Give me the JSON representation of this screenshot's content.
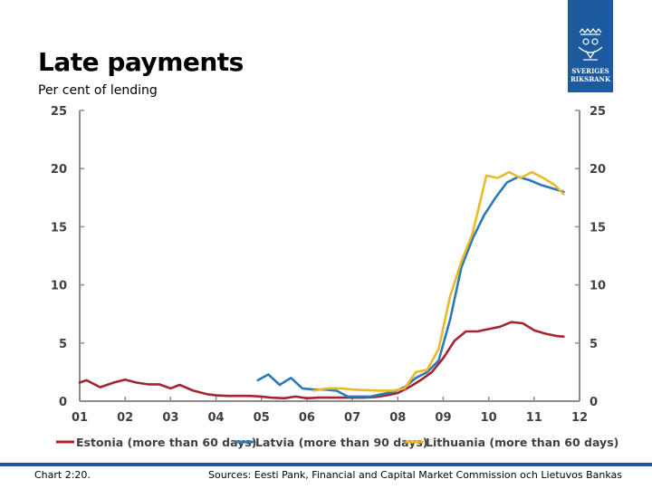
{
  "header": {
    "title": "Late payments",
    "subtitle": "Per cent of lending"
  },
  "logo": {
    "line1": "SVERIGES",
    "line2": "RIKSBANK"
  },
  "footer": {
    "chart_number": "Chart 2:20.",
    "sources": "Sources: Eesti Pank, Financial and Capital Market Commission och Lietuvos Bankas"
  },
  "colors": {
    "estonia": "#a32530",
    "latvia": "#2a7ab8",
    "lithuania": "#e8b92a",
    "brand": "#1c5aa0",
    "axis": "#8c8c8c"
  },
  "chart_data": {
    "type": "line",
    "title": "Late payments",
    "subtitle": "Per cent of lending",
    "xlabel": "",
    "ylabel": "",
    "xlim": [
      2001,
      2012
    ],
    "ylim": [
      0,
      25
    ],
    "yticks": [
      0,
      5,
      10,
      15,
      20,
      25
    ],
    "xtick_values": [
      2001,
      2002,
      2003,
      2004,
      2005,
      2006,
      2007,
      2008,
      2009,
      2010,
      2011,
      2012
    ],
    "xtick_labels": [
      "01",
      "02",
      "03",
      "04",
      "05",
      "06",
      "07",
      "08",
      "09",
      "10",
      "11",
      "12"
    ],
    "grid": false,
    "dual_y_axis": true,
    "legend_position": "bottom",
    "series": [
      {
        "name": "Estonia (more than 60 days)",
        "color": "#a32530",
        "points": [
          [
            2001.0,
            1.6
          ],
          [
            2001.15,
            1.8
          ],
          [
            2001.45,
            1.2
          ],
          [
            2001.75,
            1.6
          ],
          [
            2002.0,
            1.85
          ],
          [
            2002.25,
            1.6
          ],
          [
            2002.5,
            1.45
          ],
          [
            2002.75,
            1.45
          ],
          [
            2003.0,
            1.1
          ],
          [
            2003.2,
            1.4
          ],
          [
            2003.5,
            0.9
          ],
          [
            2003.8,
            0.6
          ],
          [
            2004.0,
            0.5
          ],
          [
            2004.25,
            0.45
          ],
          [
            2004.5,
            0.45
          ],
          [
            2004.75,
            0.45
          ],
          [
            2005.0,
            0.4
          ],
          [
            2005.2,
            0.3
          ],
          [
            2005.5,
            0.25
          ],
          [
            2005.75,
            0.4
          ],
          [
            2006.0,
            0.25
          ],
          [
            2006.25,
            0.3
          ],
          [
            2006.5,
            0.3
          ],
          [
            2006.75,
            0.3
          ],
          [
            2007.0,
            0.3
          ],
          [
            2007.25,
            0.3
          ],
          [
            2007.5,
            0.35
          ],
          [
            2007.75,
            0.5
          ],
          [
            2008.0,
            0.7
          ],
          [
            2008.25,
            1.2
          ],
          [
            2008.5,
            1.8
          ],
          [
            2008.75,
            2.5
          ],
          [
            2009.0,
            3.7
          ],
          [
            2009.25,
            5.2
          ],
          [
            2009.5,
            6.0
          ],
          [
            2009.75,
            6.0
          ],
          [
            2010.0,
            6.2
          ],
          [
            2010.25,
            6.4
          ],
          [
            2010.5,
            6.8
          ],
          [
            2010.75,
            6.7
          ],
          [
            2011.0,
            6.1
          ],
          [
            2011.25,
            5.8
          ],
          [
            2011.5,
            5.6
          ],
          [
            2011.65,
            5.55
          ]
        ]
      },
      {
        "name": "Latvia (more than 90 days)",
        "color": "#2a7ab8",
        "points": [
          [
            2004.92,
            1.8
          ],
          [
            2005.15,
            2.3
          ],
          [
            2005.4,
            1.4
          ],
          [
            2005.65,
            2.0
          ],
          [
            2005.9,
            1.1
          ],
          [
            2006.15,
            1.0
          ],
          [
            2006.4,
            1.0
          ],
          [
            2006.65,
            0.9
          ],
          [
            2006.9,
            0.4
          ],
          [
            2007.15,
            0.4
          ],
          [
            2007.4,
            0.4
          ],
          [
            2007.65,
            0.6
          ],
          [
            2007.9,
            0.8
          ],
          [
            2008.15,
            1.2
          ],
          [
            2008.4,
            2.0
          ],
          [
            2008.65,
            2.5
          ],
          [
            2008.9,
            3.5
          ],
          [
            2009.15,
            7.0
          ],
          [
            2009.4,
            11.5
          ],
          [
            2009.65,
            14.0
          ],
          [
            2009.9,
            16.0
          ],
          [
            2010.15,
            17.5
          ],
          [
            2010.4,
            18.8
          ],
          [
            2010.65,
            19.3
          ],
          [
            2010.9,
            19.0
          ],
          [
            2011.15,
            18.6
          ],
          [
            2011.4,
            18.3
          ],
          [
            2011.65,
            18.0
          ]
        ]
      },
      {
        "name": "Lithuania (more than 60 days)",
        "color": "#e8b92a",
        "points": [
          [
            2006.15,
            0.9
          ],
          [
            2006.45,
            1.1
          ],
          [
            2006.75,
            1.1
          ],
          [
            2007.0,
            1.0
          ],
          [
            2007.3,
            0.95
          ],
          [
            2007.6,
            0.9
          ],
          [
            2007.9,
            0.9
          ],
          [
            2008.15,
            1.1
          ],
          [
            2008.4,
            2.5
          ],
          [
            2008.65,
            2.7
          ],
          [
            2008.9,
            4.5
          ],
          [
            2009.15,
            9.0
          ],
          [
            2009.4,
            12.0
          ],
          [
            2009.65,
            14.5
          ],
          [
            2009.95,
            19.4
          ],
          [
            2010.2,
            19.2
          ],
          [
            2010.45,
            19.7
          ],
          [
            2010.7,
            19.2
          ],
          [
            2010.95,
            19.7
          ],
          [
            2011.2,
            19.2
          ],
          [
            2011.45,
            18.6
          ],
          [
            2011.65,
            17.8
          ]
        ]
      }
    ]
  }
}
